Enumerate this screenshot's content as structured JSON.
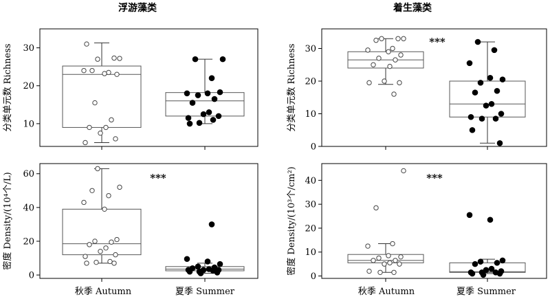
{
  "figure": {
    "x_categories": [
      "秋季 Autumn",
      "夏季 Summer"
    ]
  },
  "chart_data": [
    {
      "type": "box",
      "title": "浮游藻类",
      "ylabel": "分类单元数 Richness",
      "ylim": [
        4,
        35
      ],
      "yticks": [
        10,
        20,
        30
      ],
      "ytick_labels": [
        "10",
        "20",
        "30"
      ],
      "significance": "",
      "categories": [
        "秋季 Autumn",
        "夏季 Summer"
      ],
      "series": [
        {
          "box": {
            "min": 5,
            "q1": 9,
            "median": 23,
            "q3": 25.2,
            "max": 31.3
          },
          "points": [
            31,
            27.3,
            27,
            27.2,
            24,
            23.5,
            24,
            23.2,
            23,
            15.5,
            11,
            9,
            9,
            7.5,
            6,
            5
          ],
          "fill": "#ffffff"
        },
        {
          "box": {
            "min": 10,
            "q1": 12,
            "median": 16,
            "q3": 18.2,
            "max": 27
          },
          "points": [
            27,
            27,
            22,
            18,
            18,
            18.3,
            17.5,
            16.5,
            15.5,
            13,
            12.5,
            12,
            11.5,
            11,
            10.2,
            10
          ],
          "fill": "#000000"
        }
      ]
    },
    {
      "type": "box",
      "title": "着生藻类",
      "ylabel": "分类单元数 Richness",
      "ylim": [
        0,
        36
      ],
      "yticks": [
        0,
        10,
        20,
        30
      ],
      "ytick_labels": [
        "0",
        "10",
        "20",
        "30"
      ],
      "significance": "***",
      "categories": [
        "秋季 Autumn",
        "夏季 Summer"
      ],
      "series": [
        {
          "box": {
            "min": 19,
            "q1": 24,
            "median": 26.5,
            "q3": 29,
            "max": 33
          },
          "points": [
            33,
            33,
            33,
            32.5,
            30,
            29.5,
            29,
            28,
            27,
            26.5,
            25,
            24.5,
            20,
            19.5,
            19.5,
            16
          ],
          "fill": "#ffffff"
        },
        {
          "box": {
            "min": 1,
            "q1": 9,
            "median": 13,
            "q3": 20,
            "max": 32
          },
          "points": [
            32,
            29.5,
            25.5,
            21,
            20.5,
            19.5,
            17,
            16.5,
            13,
            12.5,
            10,
            9,
            8.5,
            8.5,
            5,
            1
          ],
          "fill": "#000000"
        }
      ]
    },
    {
      "type": "box",
      "title": "",
      "ylabel": "密度 Density/(10⁴个/L)",
      "ylim": [
        -2,
        66
      ],
      "yticks": [
        0,
        20,
        40,
        60
      ],
      "ytick_labels": [
        "0",
        "20",
        "40",
        "60"
      ],
      "significance": "***",
      "categories": [
        "秋季 Autumn",
        "夏季 Summer"
      ],
      "series": [
        {
          "box": {
            "min": 7,
            "q1": 12,
            "median": 18.5,
            "q3": 39,
            "max": 63
          },
          "points": [
            63,
            52,
            50,
            47,
            43,
            39,
            21,
            20,
            19.5,
            18,
            16,
            14,
            12,
            11,
            8,
            7.5,
            7,
            7
          ],
          "fill": "#ffffff"
        },
        {
          "box": {
            "min": 1,
            "q1": 2.5,
            "median": 3.5,
            "q3": 5,
            "max": 7
          },
          "points": [
            30,
            9.5,
            8,
            6.5,
            5,
            4.5,
            4,
            3.5,
            3,
            3,
            3,
            2.5,
            2,
            2,
            1.5,
            1
          ],
          "fill": "#000000"
        }
      ]
    },
    {
      "type": "box",
      "title": "",
      "ylabel": "密度 Density/(10³个/cm²)",
      "ylim": [
        -1,
        47
      ],
      "yticks": [
        0,
        10,
        20,
        30,
        40
      ],
      "ytick_labels": [
        "0",
        "10",
        "20",
        "30",
        "40"
      ],
      "significance": "***",
      "categories": [
        "秋季 Autumn",
        "夏季 Summer"
      ],
      "series": [
        {
          "box": {
            "min": 1.5,
            "q1": 5.5,
            "median": 6.5,
            "q3": 9,
            "max": 13.5
          },
          "points": [
            44,
            28.5,
            13.5,
            12.5,
            8.5,
            8,
            7.5,
            6.5,
            6.5,
            5.5,
            5,
            5,
            2,
            1.5,
            1.5
          ],
          "fill": "#ffffff"
        },
        {
          "box": {
            "min": 1,
            "q1": 1.5,
            "median": 1.8,
            "q3": 5.5,
            "max": 7
          },
          "points": [
            25.5,
            23.5,
            6.5,
            6,
            5.5,
            5,
            3,
            2.5,
            2,
            1.5,
            1.5,
            1.5,
            1,
            1,
            0.5
          ],
          "fill": "#000000"
        }
      ]
    }
  ]
}
